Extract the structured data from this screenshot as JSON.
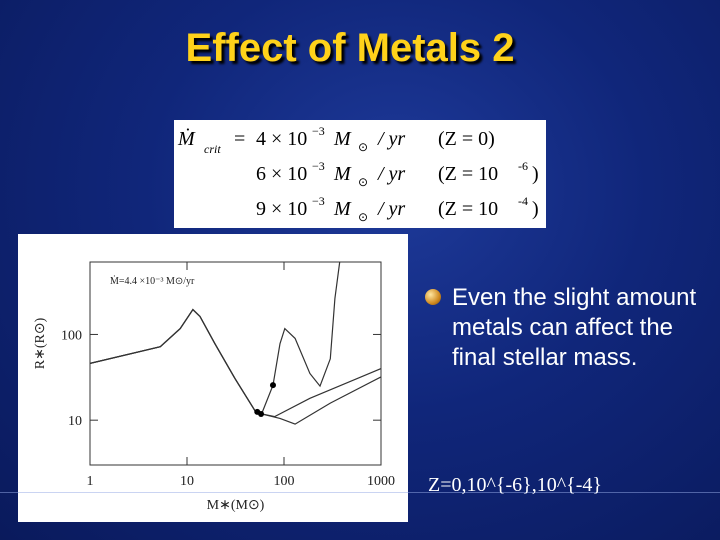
{
  "title": "Effect of Metals 2",
  "equation": {
    "lhs": "Ṁ",
    "lhs_sub": "crit",
    "eq": "=",
    "rows": [
      {
        "mantissa": "4 × 10",
        "exponent": "−3",
        "unit": "M",
        "unit_sub": "⊙",
        "per": "/ yr",
        "z": "(Z  = 0)"
      },
      {
        "mantissa": "6 × 10",
        "exponent": "−3",
        "unit": "M",
        "unit_sub": "⊙",
        "per": "/ yr",
        "z": "(Z  = 10",
        "z_exp": "-6",
        "z_close": ")"
      },
      {
        "mantissa": "9 × 10",
        "exponent": "−3",
        "unit": "M",
        "unit_sub": "⊙",
        "per": "/ yr",
        "z": "(Z  = 10",
        "z_exp": "-4",
        "z_close": ")"
      }
    ]
  },
  "bullet": "Even the slight amount metals can affect the final stellar mass.",
  "caption": "Z=0,10^{-6},10^{-4}",
  "chart_data": {
    "type": "line",
    "annotation": "Ṁ=4.4 ×10⁻³ M⊙/yr",
    "xlabel": "M∗(M⊙)",
    "ylabel": "R∗(R⊙)",
    "xlog": true,
    "ylog": true,
    "xlim": [
      1,
      1000
    ],
    "ylim": [
      3,
      700
    ],
    "xticks": [
      1,
      10,
      100,
      1000
    ],
    "yticks": [
      10,
      100
    ],
    "series": [
      {
        "color": "#333333",
        "x": [
          1,
          5.3,
          8.5,
          11.5,
          13.6,
          19.4,
          31,
          50,
          56,
          91,
          130,
          300,
          1000
        ],
        "y": [
          46,
          72,
          117,
          195,
          162,
          78,
          31,
          13,
          12,
          10.5,
          9,
          15.8,
          32
        ]
      },
      {
        "color": "#333333",
        "x": [
          1,
          5.3,
          8.5,
          11.5,
          13.6,
          19.4,
          31,
          50,
          56,
          80,
          185,
          1000
        ],
        "y": [
          46,
          72,
          117,
          195,
          162,
          78,
          31,
          13,
          12,
          11,
          18,
          40
        ]
      },
      {
        "color": "#333333",
        "x": [
          1,
          5.3,
          8.5,
          11.5,
          13.6,
          19.4,
          31,
          50,
          59,
          77,
          91,
          102,
          130,
          185,
          235,
          300,
          335,
          375
        ],
        "y": [
          46,
          72,
          117,
          195,
          162,
          78,
          31,
          13,
          12,
          25.6,
          78,
          117,
          90,
          35,
          25,
          52,
          262,
          700
        ]
      }
    ],
    "markers": {
      "x": [
        53,
        58,
        77
      ],
      "y": [
        12.5,
        11.8,
        25.6
      ]
    }
  }
}
